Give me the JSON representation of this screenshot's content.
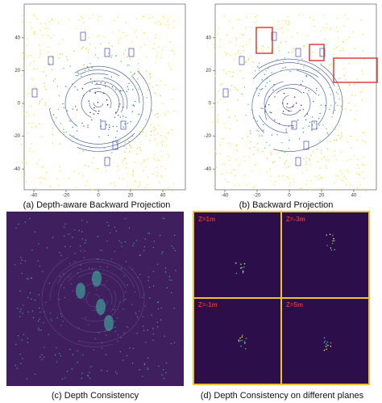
{
  "axes": {
    "xticks": [
      -40,
      -20,
      0,
      20,
      40
    ],
    "yticks": [
      40,
      20,
      0,
      -20,
      -40
    ]
  },
  "panels": [
    {
      "caption": "(a) Depth-aware Backward Projection"
    },
    {
      "caption": "(b) Backward Projection"
    },
    {
      "caption": "(c) Depth Consistency"
    },
    {
      "caption": "(d) Depth Consistency on different planes"
    }
  ],
  "planes": [
    "Z=1m",
    "Z=-3m",
    "Z=-1m",
    "Z=5m"
  ]
}
